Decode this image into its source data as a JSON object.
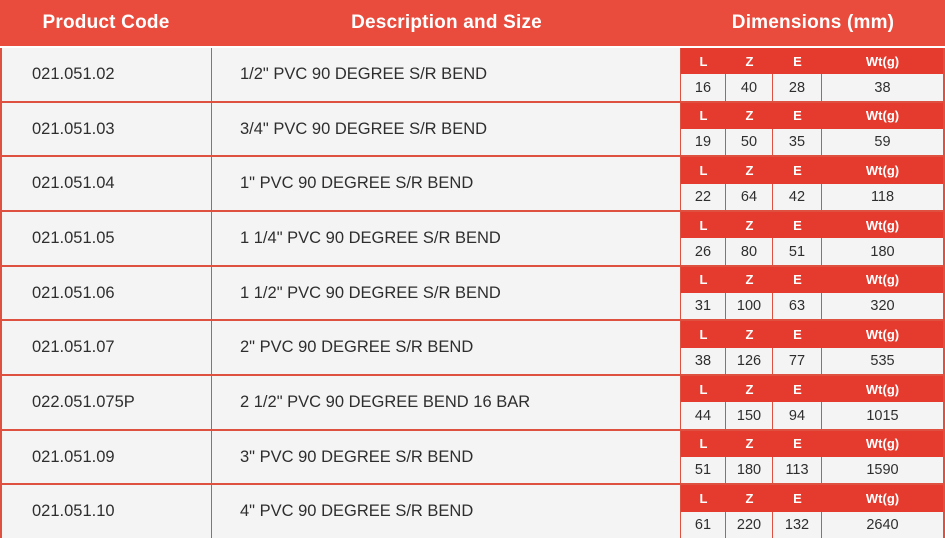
{
  "header": {
    "product_code": "Product Code",
    "description": "Description and Size",
    "dimensions": "Dimensions (mm)"
  },
  "dim_labels": [
    "L",
    "Z",
    "E",
    "Wt(g)"
  ],
  "colors": {
    "header_red": "#e94b3c",
    "strip_red": "#e53a2e",
    "border_red": "#de5140",
    "row_bg": "#f5f4f4",
    "text_dark": "#2e2e2e",
    "header_text": "#ffffff"
  },
  "rows": [
    {
      "code": "021.051.02",
      "description": "1/2\" PVC 90 DEGREE S/R BEND",
      "dims": [
        "16",
        "40",
        "28",
        "38"
      ]
    },
    {
      "code": "021.051.03",
      "description": "3/4\" PVC 90 DEGREE S/R BEND",
      "dims": [
        "19",
        "50",
        "35",
        "59"
      ]
    },
    {
      "code": "021.051.04",
      "description": "1\" PVC 90 DEGREE S/R BEND",
      "dims": [
        "22",
        "64",
        "42",
        "118"
      ]
    },
    {
      "code": "021.051.05",
      "description": "1 1/4\" PVC 90 DEGREE S/R BEND",
      "dims": [
        "26",
        "80",
        "51",
        "180"
      ]
    },
    {
      "code": "021.051.06",
      "description": "1 1/2\" PVC 90 DEGREE S/R BEND",
      "dims": [
        "31",
        "100",
        "63",
        "320"
      ]
    },
    {
      "code": "021.051.07",
      "description": "2\" PVC 90 DEGREE S/R BEND",
      "dims": [
        "38",
        "126",
        "77",
        "535"
      ]
    },
    {
      "code": "022.051.075P",
      "description": "2 1/2\" PVC 90 DEGREE BEND 16 BAR",
      "dims": [
        "44",
        "150",
        "94",
        "1015"
      ]
    },
    {
      "code": "021.051.09",
      "description": "3\" PVC 90 DEGREE S/R BEND",
      "dims": [
        "51",
        "180",
        "113",
        "1590"
      ]
    },
    {
      "code": "021.051.10",
      "description": "4\" PVC 90 DEGREE S/R BEND",
      "dims": [
        "61",
        "220",
        "132",
        "2640"
      ]
    }
  ]
}
